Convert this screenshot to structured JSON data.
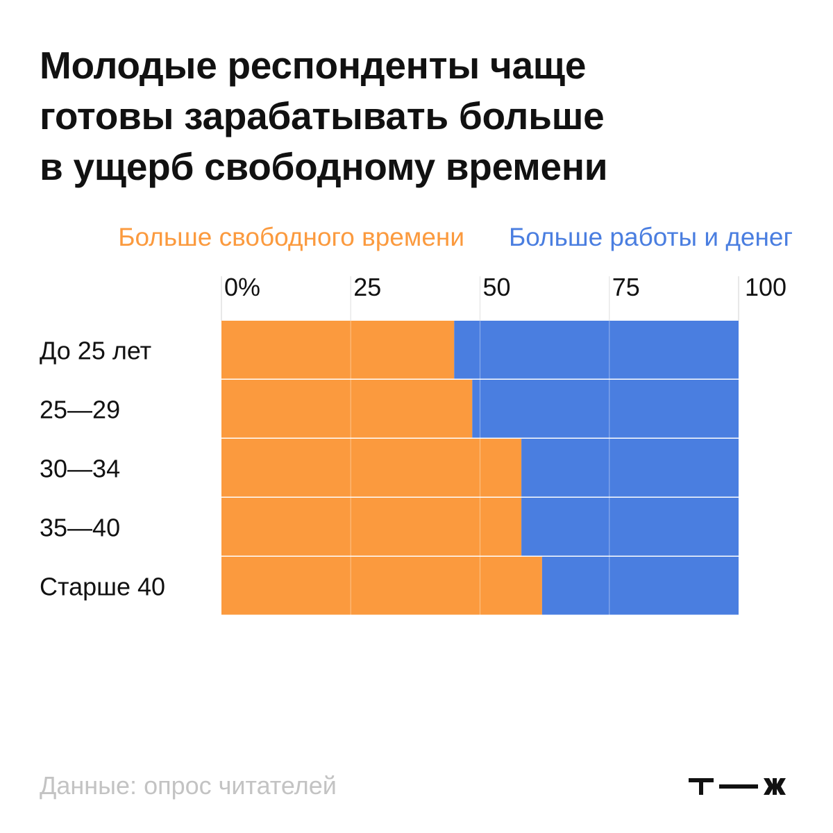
{
  "title_lines": [
    "Молодые респонденты чаще",
    "готовы зарабатывать больше",
    "в ущерб свободному времени"
  ],
  "footer": {
    "source": "Данные: опрос читателей",
    "logo_text": "т—ж"
  },
  "colors": {
    "free_time": "#fb9a3e",
    "work_money": "#4a7ee0",
    "text": "#111111",
    "muted": "#c3c3c3"
  },
  "chart_data": {
    "type": "bar",
    "orientation": "horizontal",
    "stacked": true,
    "percent": true,
    "title": "Молодые респонденты чаще готовы зарабатывать больше в ущерб свободному времени",
    "categories": [
      "До 25 лет",
      "25—29",
      "30—34",
      "35—40",
      "Старше 40"
    ],
    "series": [
      {
        "name": "Больше свободного времени",
        "values": [
          45,
          48.5,
          58,
          58,
          62
        ],
        "color": "#fb9a3e"
      },
      {
        "name": "Больше работы и денег",
        "values": [
          55,
          51.5,
          42,
          42,
          38
        ],
        "color": "#4a7ee0"
      }
    ],
    "x_ticks": [
      "0%",
      "25",
      "50",
      "75",
      "100"
    ],
    "xlim": [
      0,
      100
    ],
    "grid": true,
    "legend_position": "top"
  }
}
